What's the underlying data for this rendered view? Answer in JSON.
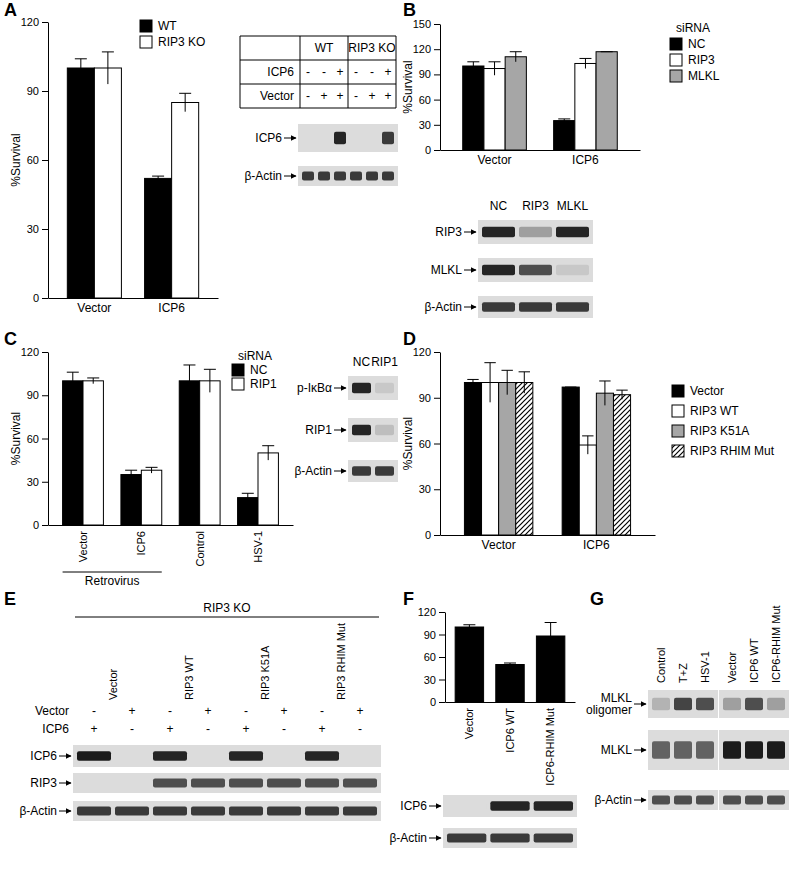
{
  "chart_data": [
    {
      "type": "bar",
      "panel": "A",
      "categories": [
        "Vector",
        "ICP6"
      ],
      "y_label": "%Survival",
      "ylim": [
        0,
        120
      ],
      "yticks": [
        0,
        30,
        60,
        90,
        120
      ],
      "legend": "upper right",
      "series": [
        {
          "name": "WT",
          "color": "#000000",
          "values": [
            100,
            52
          ],
          "errors": [
            4,
            1
          ]
        },
        {
          "name": "RIP3 KO",
          "color": "#ffffff",
          "values": [
            100,
            85
          ],
          "errors": [
            7,
            4
          ]
        }
      ]
    },
    {
      "type": "blot",
      "groups": [
        "WT",
        "RIP3 KO"
      ],
      "grid": true,
      "conditions": [
        {
          "label": "ICP6",
          "signs": [
            "-",
            "-",
            "+",
            "-",
            "-",
            "+"
          ]
        },
        {
          "label": "Vector",
          "signs": [
            "-",
            "+",
            "+",
            "-",
            "+",
            "+"
          ]
        }
      ],
      "rows": [
        {
          "label": "ICP6",
          "bands": [
            0,
            0,
            0.9,
            0,
            0,
            0.8
          ]
        },
        {
          "label": "β-Actin",
          "bands": [
            0.8,
            0.8,
            0.8,
            0.8,
            0.8,
            0.8
          ]
        }
      ]
    },
    {
      "type": "bar",
      "panel": "B",
      "categories": [
        "Vector",
        "ICP6"
      ],
      "y_label": "%Survival",
      "ylim": [
        0,
        150
      ],
      "yticks": [
        0,
        30,
        60,
        90,
        120,
        150
      ],
      "legend": "upper right",
      "legend_title": "siRNA",
      "series": [
        {
          "name": "NC",
          "color": "#000000",
          "values": [
            100,
            35
          ],
          "errors": [
            5,
            2
          ]
        },
        {
          "name": "RIP3",
          "color": "#ffffff",
          "values": [
            97,
            103
          ],
          "errors": [
            8,
            6
          ]
        },
        {
          "name": "MLKL",
          "color": "#a6a6a6",
          "values": [
            111,
            117
          ],
          "errors": [
            6,
            0
          ]
        }
      ]
    },
    {
      "type": "blot",
      "lanes": [
        "NC",
        "RIP3",
        "MLKL"
      ],
      "rows": [
        {
          "label": "RIP3",
          "bands": [
            0.9,
            0.3,
            0.9
          ]
        },
        {
          "label": "MLKL",
          "bands": [
            0.9,
            0.7,
            0.1
          ]
        },
        {
          "label": "β-Actin",
          "bands": [
            0.8,
            0.8,
            0.8
          ]
        }
      ]
    },
    {
      "type": "bar",
      "panel": "C",
      "categories": [
        "Vector",
        "ICP6",
        "Control",
        "HSV-1"
      ],
      "y_label": "%Survival",
      "group_label": {
        "text": "Retrovirus",
        "from": "Vector",
        "to": "ICP6"
      },
      "ylim": [
        0,
        120
      ],
      "yticks": [
        0,
        30,
        60,
        90,
        120
      ],
      "legend": "upper right",
      "legend_title": "siRNA",
      "series": [
        {
          "name": "NC",
          "color": "#000000",
          "values": [
            100,
            35,
            100,
            19
          ],
          "errors": [
            6,
            3,
            11,
            3
          ]
        },
        {
          "name": "RIP1",
          "color": "#ffffff",
          "values": [
            100,
            38,
            100,
            50
          ],
          "errors": [
            2,
            2,
            8,
            5
          ]
        }
      ]
    },
    {
      "type": "blot",
      "lanes": [
        "NC",
        "RIP1"
      ],
      "rows": [
        {
          "label": "p-IκBα",
          "bands": [
            0.9,
            0.1
          ]
        },
        {
          "label": "RIP1",
          "bands": [
            0.9,
            0.15
          ]
        },
        {
          "label": "β-Actin",
          "bands": [
            0.8,
            0.8
          ]
        }
      ]
    },
    {
      "type": "bar",
      "panel": "D",
      "categories": [
        "Vector",
        "ICP6"
      ],
      "y_label": "%Survival",
      "ylim": [
        0,
        120
      ],
      "yticks": [
        0,
        30,
        60,
        90,
        120
      ],
      "legend": "right",
      "series": [
        {
          "name": "Vector",
          "color": "#000000",
          "values": [
            100,
            97
          ],
          "errors": [
            2,
            0
          ]
        },
        {
          "name": "RIP3 WT",
          "color": "#ffffff",
          "values": [
            100,
            59
          ],
          "errors": [
            13,
            6
          ]
        },
        {
          "name": "RIP3 K51A",
          "color": "#a6a6a6",
          "values": [
            100,
            93
          ],
          "errors": [
            8,
            8
          ]
        },
        {
          "name": "RIP3 RHIM Mut",
          "color": "#ffffff",
          "marker": "hatch",
          "values": [
            100,
            92
          ],
          "errors": [
            7,
            3
          ]
        }
      ]
    },
    {
      "type": "blot",
      "panel": "E",
      "header": "RIP3 KO",
      "groups": [
        "Vector",
        "RIP3 WT",
        "RIP3 K51A",
        "RIP3 RHIM Mut"
      ],
      "conditions": [
        {
          "label": "Vector",
          "signs": [
            "-",
            "+",
            "-",
            "+",
            "-",
            "+",
            "-",
            "+"
          ]
        },
        {
          "label": "ICP6",
          "signs": [
            "+",
            "-",
            "+",
            "-",
            "+",
            "-",
            "+",
            "-"
          ]
        }
      ],
      "rows": [
        {
          "label": "ICP6",
          "bands": [
            0.95,
            0,
            0.9,
            0,
            0.9,
            0,
            0.9,
            0
          ]
        },
        {
          "label": "RIP3",
          "bands": [
            0,
            0,
            0.7,
            0.7,
            0.7,
            0.7,
            0.7,
            0.7
          ]
        },
        {
          "label": "β-Actin",
          "bands": [
            0.8,
            0.8,
            0.8,
            0.8,
            0.8,
            0.8,
            0.8,
            0.8
          ]
        }
      ]
    },
    {
      "type": "bar",
      "panel": "F",
      "categories": [
        "Vector",
        "ICP6 WT",
        "ICP6-RHIM Mut"
      ],
      "ylim": [
        0,
        120
      ],
      "yticks": [
        0,
        30,
        60,
        90,
        120
      ],
      "color": "#000000",
      "values": [
        100,
        50,
        88
      ],
      "errors": [
        3,
        2,
        18
      ]
    },
    {
      "type": "blot",
      "rows": [
        {
          "label": "ICP6",
          "bands": [
            0,
            0.9,
            0.9
          ]
        },
        {
          "label": "β-Actin",
          "bands": [
            0.8,
            0.8,
            0.8
          ]
        }
      ]
    },
    {
      "type": "blot",
      "panel": "G",
      "lane_groups": [
        [
          "Control",
          "T+Z",
          "HSV-1"
        ],
        [
          "Vector",
          "ICP6 WT",
          "ICP6-RHIM Mut"
        ]
      ],
      "rows": [
        {
          "label": "MLKL oligomer",
          "bands": [
            0.2,
            0.75,
            0.7,
            0.3,
            0.7,
            0.3
          ]
        },
        {
          "label": "MLKL",
          "bands": [
            0.6,
            0.6,
            0.6,
            0.95,
            0.95,
            0.95
          ]
        },
        {
          "label": "β-Actin",
          "bands": [
            0.7,
            0.7,
            0.7,
            0.7,
            0.7,
            0.7
          ]
        }
      ]
    }
  ]
}
